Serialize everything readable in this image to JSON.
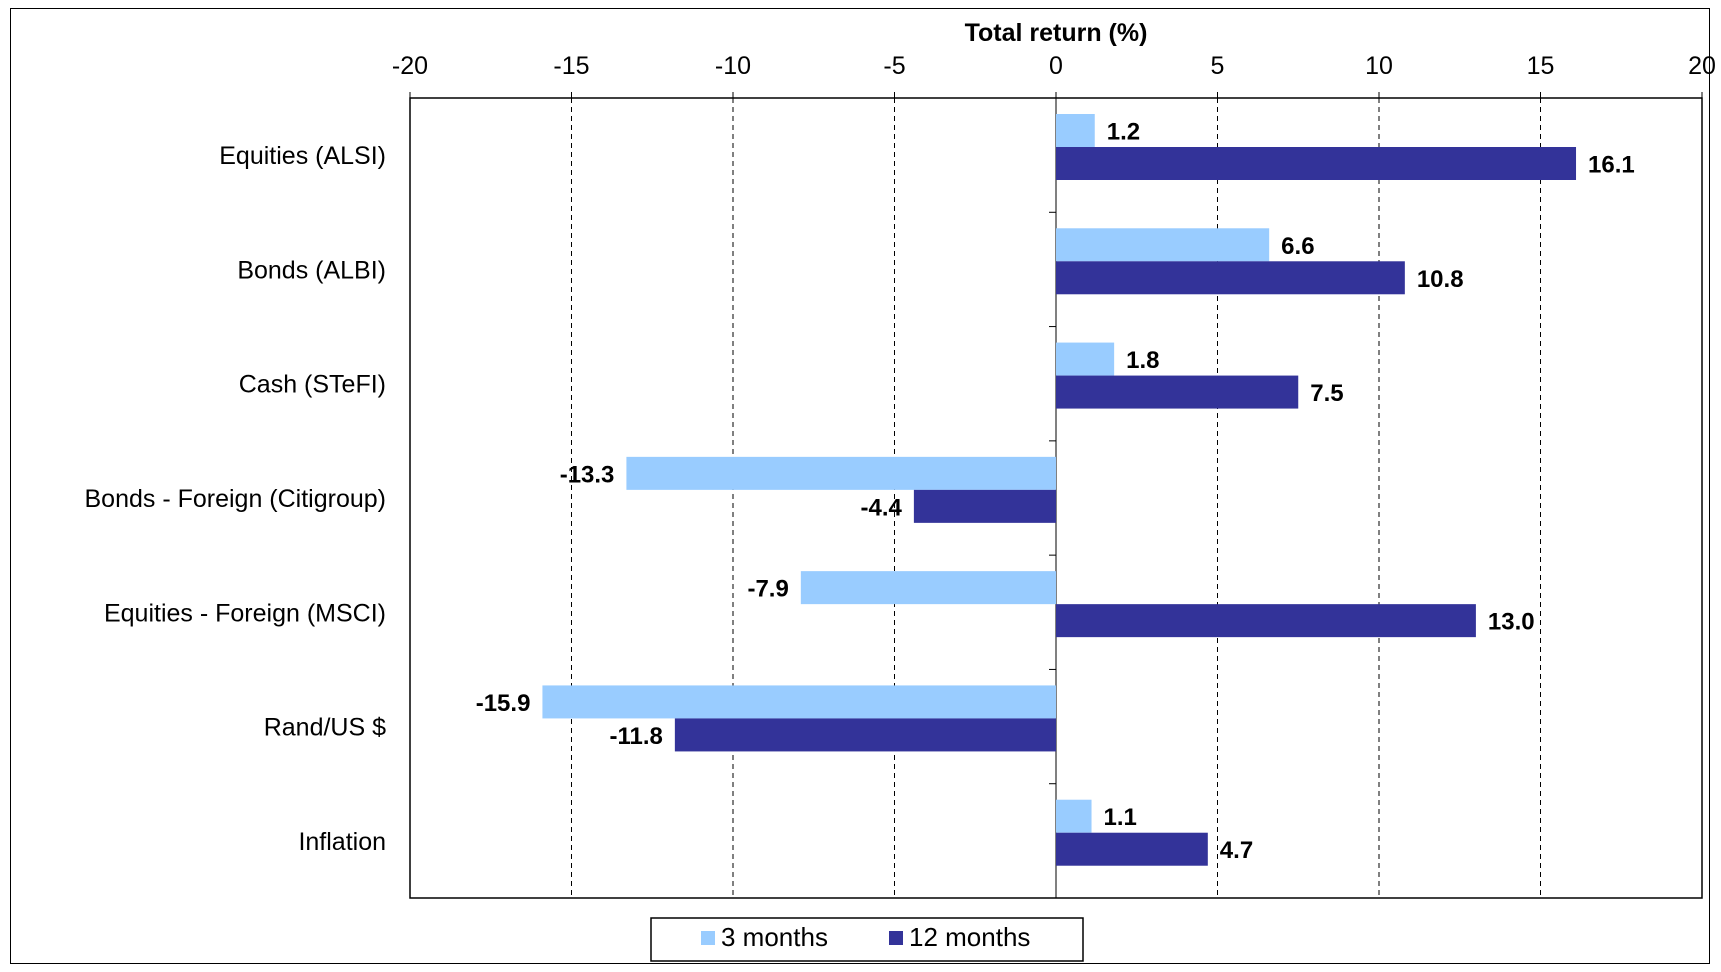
{
  "chart_data": {
    "type": "bar",
    "orientation": "horizontal",
    "xlabel": "Total return (%)",
    "xlim": [
      -20,
      20
    ],
    "xticks": [
      -20,
      -15,
      -10,
      -5,
      0,
      5,
      10,
      15,
      20
    ],
    "grid": "vertical dashed",
    "categories": [
      "Equities (ALSI)",
      "Bonds (ALBI)",
      "Cash (STeFI)",
      "Bonds - Foreign (Citigroup)",
      "Equities - Foreign (MSCI)",
      "Rand/US $",
      "Inflation"
    ],
    "series": [
      {
        "name": "3 months",
        "color": "#99ccff",
        "values": [
          1.2,
          6.6,
          1.8,
          -13.3,
          -7.9,
          -15.9,
          1.1
        ],
        "labels": [
          "1.2",
          "6.6",
          "1.8",
          "-13.3",
          "-7.9",
          "-15.9",
          "1.1"
        ]
      },
      {
        "name": "12 months",
        "color": "#333399",
        "values": [
          16.1,
          10.8,
          7.5,
          -4.4,
          13.0,
          -11.8,
          4.7
        ],
        "labels": [
          "16.1",
          "10.8",
          "7.5",
          "-4.4",
          "13.0",
          "-11.8",
          "4.7"
        ]
      }
    ],
    "legend_position": "bottom"
  }
}
